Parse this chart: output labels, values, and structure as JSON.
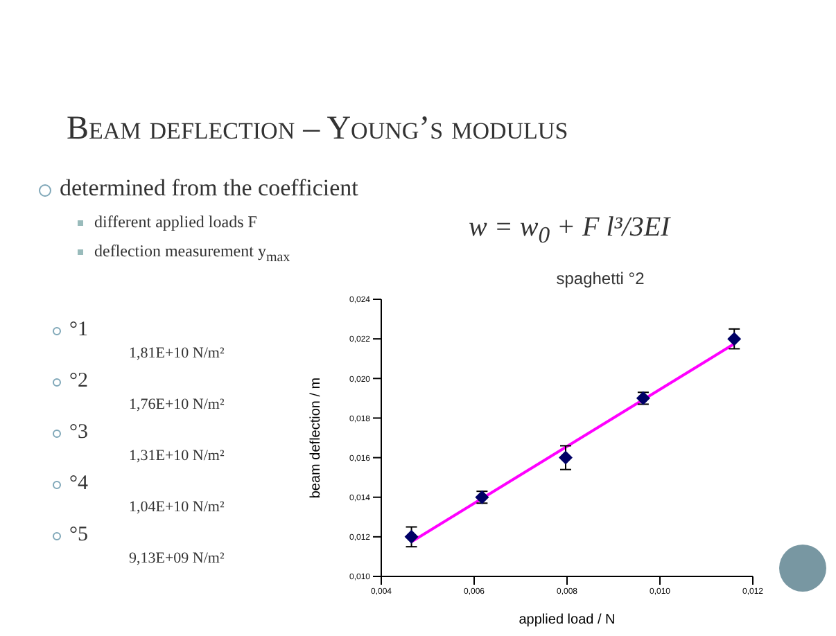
{
  "chart_data": {
    "type": "scatter",
    "title": "spaghetti °2",
    "xlabel": "applied load / N",
    "ylabel": "beam deflection / m",
    "annotations": [
      "Beam deflection – Young’s modulus",
      "determined  from the coefficient",
      "different applied loads  F",
      "deflection measurement  y$_{max}$",
      "w = w$_{0}$ + F l³/3EI",
      "°1",
      "1,81E+10 N/m²",
      "°2",
      "1,76E+10 N/m²",
      "°3",
      "1,31E+10 N/m²",
      "°4",
      "1,04E+10 N/m²",
      "°5",
      "9,13E+09 N/m²"
    ],
    "x": [
      0.00465,
      0.00617,
      0.00797,
      0.00964,
      0.0116
    ],
    "series": [
      {
        "color": "#000066",
        "marker": "diamond",
        "values": [
          0.012,
          0.014,
          0.016,
          0.019,
          0.022
        ],
        "errors": [
          0.0005,
          0.0003,
          0.0006,
          0.0003,
          0.0005
        ]
      },
      {
        "type": "line",
        "color": "#ff00ff",
        "marker": "none",
        "x": [
          0.00465,
          0.0116
        ],
        "values": [
          0.01175,
          0.02175
        ]
      }
    ],
    "xlim": [
      0.004,
      0.012
    ],
    "xticks": [
      {
        "value": 0.004,
        "label": "0,004"
      },
      {
        "value": 0.006,
        "label": "0,006"
      },
      {
        "value": 0.008,
        "label": "0,008"
      },
      {
        "value": 0.01,
        "label": "0,010"
      },
      {
        "value": 0.012,
        "label": "0,012"
      }
    ],
    "ylim": [
      0.01,
      0.024
    ],
    "yticks": [
      {
        "value": 0.01,
        "label": "0,010"
      },
      {
        "value": 0.012,
        "label": "0,012"
      },
      {
        "value": 0.014,
        "label": "0,014"
      },
      {
        "value": 0.016,
        "label": "0,016"
      },
      {
        "value": 0.018,
        "label": "0,018"
      },
      {
        "value": 0.02,
        "label": "0,020"
      },
      {
        "value": 0.022,
        "label": "0,022"
      },
      {
        "value": 0.024,
        "label": "0,024"
      }
    ],
    "grid": false,
    "legend": false
  }
}
